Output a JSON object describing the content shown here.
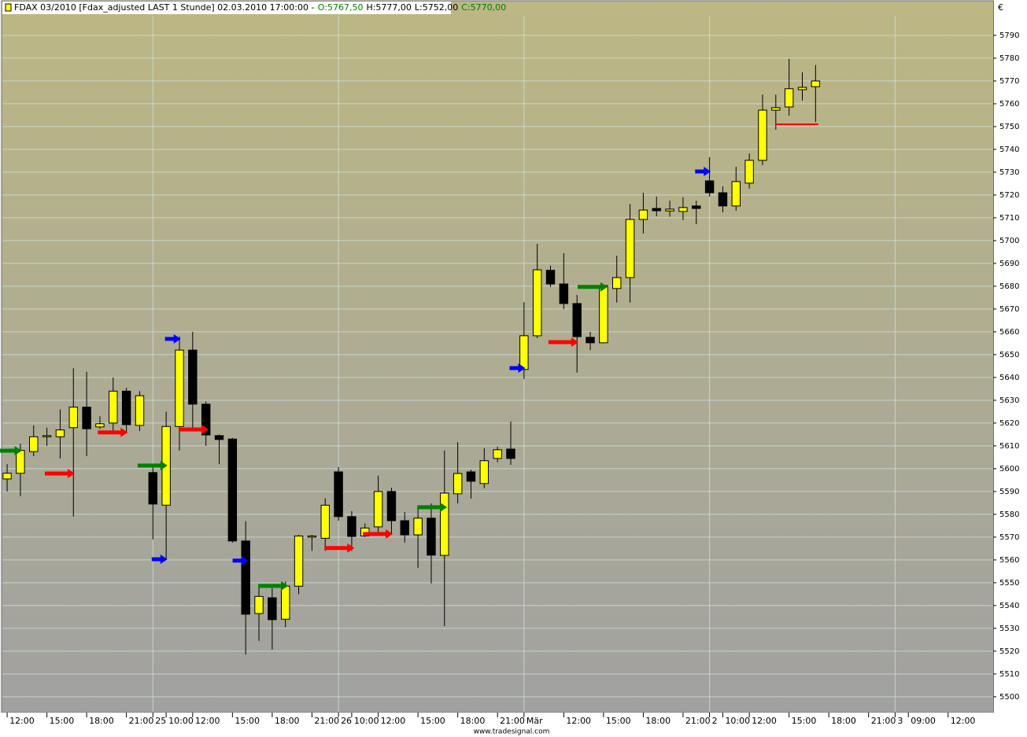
{
  "chart_data": {
    "type": "candlestick",
    "title": "FDAX 03/2010 [Fdax_adjusted LAST 1 Stunde] 02.03.2010 17:00:00 -",
    "ohlc_labels": [
      {
        "text": "O:5767,50",
        "color": "#008000"
      },
      {
        "text": "H:5777,00",
        "color": "#000000"
      },
      {
        "text": "L:5752,00",
        "color": "#000000"
      },
      {
        "text": "C:5770,00",
        "color": "#008000"
      }
    ],
    "y_label": "€",
    "credit": "www.tradesignal.com",
    "up_color": "#ffff00",
    "down_color": "#000000",
    "grid": true,
    "open": [
      5595.5,
      5598,
      5607.5,
      5614,
      5614,
      5618,
      5627,
      5618.3,
      5620,
      5634,
      5619,
      5598.3,
      5584,
      5618.5,
      5652,
      5628.3,
      5614.5,
      5613,
      5568.3,
      5536.5,
      5543.4,
      5534,
      5548.5,
      5570,
      5569.5,
      5598.6,
      5579,
      5570.5,
      5574.5,
      5590,
      5577.2,
      5571,
      5578.3,
      5562,
      5589,
      5598.6,
      5593.5,
      5604.5,
      5608.6,
      5643.5,
      5658.3,
      5687,
      5681,
      5672.4,
      5657.6,
      5655.2,
      5679,
      5683.8,
      5709.3,
      5714.1,
      5713,
      5712.8,
      5715.2,
      5726.2,
      5721,
      5715.2,
      5725.2,
      5735.2,
      5757.2,
      5758.6,
      5766.2,
      5767.5
    ],
    "high": [
      5602,
      5611,
      5619,
      5618,
      5626,
      5644,
      5642.5,
      5623,
      5640,
      5635.5,
      5634,
      5602,
      5625,
      5658,
      5660,
      5629.5,
      5615,
      5613.5,
      5577,
      5548.5,
      5547.6,
      5550.5,
      5571,
      5571,
      5587,
      5600.7,
      5581.4,
      5576,
      5597,
      5591.7,
      5581,
      5583,
      5584.8,
      5608,
      5611.7,
      5599.6,
      5609,
      5609.7,
      5620.7,
      5673,
      5698.6,
      5689,
      5694.5,
      5676.2,
      5660,
      5680.7,
      5693.4,
      5716,
      5721,
      5719.3,
      5717.5,
      5719,
      5717.5,
      5736.6,
      5723.8,
      5732.4,
      5738.3,
      5764,
      5764,
      5779.7,
      5773.8,
      5777
    ],
    "low": [
      5590,
      5588,
      5605.5,
      5610,
      5604.5,
      5579,
      5605.5,
      5617.5,
      5616,
      5616,
      5616.5,
      5569,
      5560.5,
      5608,
      5617.5,
      5610,
      5602,
      5567.6,
      5518.5,
      5524.5,
      5520.7,
      5530.5,
      5545,
      5564,
      5564,
      5577.2,
      5564,
      5570,
      5571,
      5571,
      5567.6,
      5556.5,
      5549.7,
      5531,
      5584.8,
      5586.9,
      5591.5,
      5602.8,
      5601.7,
      5639.3,
      5657.2,
      5679.7,
      5670,
      5642.1,
      5652,
      5655,
      5672.8,
      5672.8,
      5703.1,
      5710.7,
      5710.5,
      5709,
      5707.2,
      5719.3,
      5712.4,
      5713.1,
      5722.8,
      5733.1,
      5748.6,
      5754.8,
      5761.4,
      5752
    ],
    "close": [
      5598,
      5608,
      5614,
      5614.5,
      5617,
      5627,
      5617.5,
      5619.7,
      5634,
      5619.3,
      5632,
      5584.5,
      5618.5,
      5652,
      5628.3,
      5614.8,
      5612.8,
      5568.3,
      5536.2,
      5544,
      5533.8,
      5548.5,
      5570.5,
      5570.5,
      5584,
      5579,
      5570.3,
      5574,
      5590,
      5577.2,
      5571,
      5578.3,
      5562.1,
      5589.3,
      5597.9,
      5594.5,
      5603.5,
      5608.3,
      5604.5,
      5658.3,
      5687.2,
      5681,
      5672.4,
      5657.9,
      5655.2,
      5680.3,
      5683.8,
      5709.3,
      5713.4,
      5713.1,
      5713.8,
      5714.5,
      5714.1,
      5721,
      5715.2,
      5725.9,
      5735.2,
      5757.2,
      5758.3,
      5766.6,
      5767.2,
      5770
    ],
    "reference_line": {
      "value": 5751,
      "x": [
        58,
        61.2
      ],
      "color": "#ff0000"
    },
    "markers": [
      {
        "x": 1.1,
        "y": 5607.9,
        "color": "#008000"
      },
      {
        "x": 5.1,
        "y": 5597.9,
        "color": "#ff0000"
      },
      {
        "x": 9.1,
        "y": 5615.9,
        "color": "#ff0000"
      },
      {
        "x": 12.1,
        "y": 5601.4,
        "color": "#008000"
      },
      {
        "x": 13.1,
        "y": 5656.9,
        "color": "#0000ff"
      },
      {
        "x": 15.2,
        "y": 5617.2,
        "color": "#ff0000"
      },
      {
        "x": 12.1,
        "y": 5560.3,
        "color": "#0000ff"
      },
      {
        "x": 18.2,
        "y": 5559.7,
        "color": "#0000ff"
      },
      {
        "x": 21.2,
        "y": 5548.6,
        "color": "#008000"
      },
      {
        "x": 26.2,
        "y": 5565.2,
        "color": "#ff0000"
      },
      {
        "x": 29.1,
        "y": 5571.4,
        "color": "#ff0000"
      },
      {
        "x": 33.2,
        "y": 5583.1,
        "color": "#008000"
      },
      {
        "x": 39.1,
        "y": 5644.1,
        "color": "#0000ff"
      },
      {
        "x": 43.1,
        "y": 5655.5,
        "color": "#ff0000"
      },
      {
        "x": 45.3,
        "y": 5679.7,
        "color": "#008000"
      },
      {
        "x": 53.1,
        "y": 5730.3,
        "color": "#0000ff"
      }
    ],
    "xlim": [
      -0.36,
      74.4
    ],
    "xticks": [
      {
        "value": 0,
        "label": "12:00"
      },
      {
        "value": 3,
        "label": "15:00"
      },
      {
        "value": 6,
        "label": "18:00"
      },
      {
        "value": 9,
        "label": "21:00"
      },
      {
        "value": 11,
        "label": "25"
      },
      {
        "value": 12,
        "label": "10:00"
      },
      {
        "value": 14,
        "label": "12:00"
      },
      {
        "value": 17,
        "label": "15:00"
      },
      {
        "value": 20,
        "label": "18:00"
      },
      {
        "value": 23,
        "label": "21:00"
      },
      {
        "value": 25,
        "label": "26"
      },
      {
        "value": 26,
        "label": "10:00"
      },
      {
        "value": 28,
        "label": "12:00"
      },
      {
        "value": 31,
        "label": "15:00"
      },
      {
        "value": 34,
        "label": "18:00"
      },
      {
        "value": 37,
        "label": "21:00"
      },
      {
        "value": 39,
        "label": "Mär"
      },
      {
        "value": 42,
        "label": "12:00"
      },
      {
        "value": 45,
        "label": "15:00"
      },
      {
        "value": 48,
        "label": "18:00"
      },
      {
        "value": 51,
        "label": "21:00"
      },
      {
        "value": 53,
        "label": "2"
      },
      {
        "value": 54,
        "label": "10:00"
      },
      {
        "value": 56,
        "label": "12:00"
      },
      {
        "value": 59,
        "label": "15:00"
      },
      {
        "value": 62,
        "label": "18:00"
      },
      {
        "value": 65,
        "label": "21:00"
      },
      {
        "value": 67,
        "label": "3"
      },
      {
        "value": 68,
        "label": "09:00"
      },
      {
        "value": 71,
        "label": "12:00"
      }
    ],
    "ylim": [
      5493.4,
      5798.6
    ],
    "yticks": [
      5500,
      5510,
      5520,
      5530,
      5540,
      5550,
      5560,
      5570,
      5580,
      5590,
      5600,
      5610,
      5620,
      5630,
      5640,
      5650,
      5660,
      5670,
      5680,
      5690,
      5700,
      5710,
      5720,
      5730,
      5740,
      5750,
      5760,
      5770,
      5780,
      5790
    ]
  }
}
